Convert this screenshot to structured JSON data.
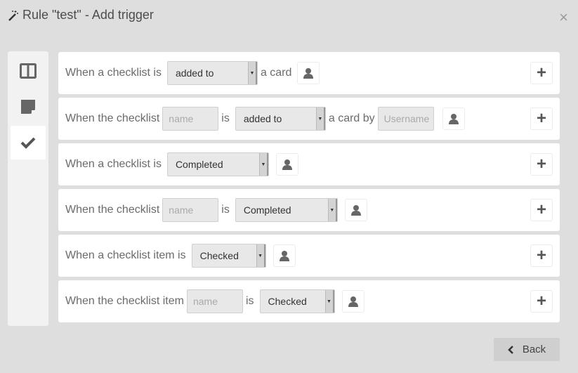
{
  "header": {
    "title": "Rule \"test\" - Add trigger",
    "icon": "magic-wand-icon",
    "close": "×"
  },
  "sidebar": {
    "items": [
      {
        "icon": "board-columns-icon"
      },
      {
        "icon": "card-icon"
      },
      {
        "icon": "check-icon",
        "active": true
      }
    ]
  },
  "rows": [
    {
      "t1": "When a checklist is",
      "sel": "added to",
      "t2": "a card"
    },
    {
      "t1": "When the checklist",
      "name_placeholder": "name",
      "t2": "is",
      "sel": "added to",
      "t3": "a card by",
      "user_placeholder": "Username"
    },
    {
      "t1": "When a checklist is",
      "sel": "Completed"
    },
    {
      "t1": "When the checklist",
      "name_placeholder": "name",
      "t2": "is",
      "sel": "Completed"
    },
    {
      "t1": "When a checklist item is",
      "sel": "Checked"
    },
    {
      "t1": "When the checklist item",
      "name_placeholder": "name",
      "t2": "is",
      "sel": "Checked"
    }
  ],
  "plus": "+",
  "back": {
    "label": "Back",
    "icon": "chevron-left-icon"
  }
}
